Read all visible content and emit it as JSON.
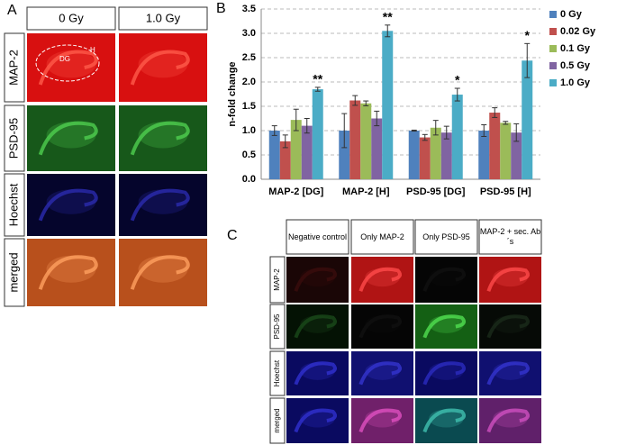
{
  "panel_labels": [
    "A",
    "B",
    "C"
  ],
  "panel_a": {
    "columns": [
      "0 Gy",
      "1.0 Gy"
    ],
    "rows": [
      "MAP-2",
      "PSD-95",
      "Hoechst",
      "merged"
    ],
    "image_labels": [
      "DG",
      "H"
    ]
  },
  "chart_data": {
    "type": "bar",
    "ylabel": "n-fold change",
    "categories": [
      "MAP-2 [DG]",
      "MAP-2 [H]",
      "PSD-95 [DG]",
      "PSD-95 [H]"
    ],
    "series": [
      {
        "name": "0 Gy",
        "color": "#4f81bd",
        "values": [
          1.0,
          1.0,
          1.0,
          1.0
        ],
        "errors": [
          0.1,
          0.35,
          0.01,
          0.12
        ]
      },
      {
        "name": "0.02 Gy",
        "color": "#c0504d",
        "values": [
          0.78,
          1.62,
          0.86,
          1.37
        ],
        "errors": [
          0.13,
          0.1,
          0.06,
          0.1
        ]
      },
      {
        "name": "0.1 Gy",
        "color": "#9bbb59",
        "values": [
          1.22,
          1.56,
          1.06,
          1.16
        ],
        "errors": [
          0.22,
          0.05,
          0.15,
          0.03
        ]
      },
      {
        "name": "0.5 Gy",
        "color": "#8064a2",
        "values": [
          1.1,
          1.25,
          0.96,
          0.96
        ],
        "errors": [
          0.15,
          0.15,
          0.13,
          0.18
        ]
      },
      {
        "name": "1.0 Gy",
        "color": "#4bacc6",
        "values": [
          1.85,
          3.05,
          1.74,
          2.44
        ],
        "errors": [
          0.04,
          0.12,
          0.13,
          0.35
        ]
      }
    ],
    "significance": [
      "**",
      "**",
      "*",
      "*"
    ],
    "ylim": [
      0,
      3.5
    ],
    "yticks": [
      {
        "value": 0,
        "label": "0.0"
      },
      {
        "value": 0.5,
        "label": "0.5"
      },
      {
        "value": 1,
        "label": "1.0"
      },
      {
        "value": 1.5,
        "label": "1.5"
      },
      {
        "value": 2,
        "label": "2.0"
      },
      {
        "value": 2.5,
        "label": "2.5"
      },
      {
        "value": 3,
        "label": "3.0"
      },
      {
        "value": 3.5,
        "label": "3.5"
      }
    ],
    "grid": true,
    "legend": "right"
  },
  "panel_c": {
    "columns": [
      "Negative control",
      "Only MAP-2",
      "Only PSD-95",
      "MAP-2 + sec. Ab´s"
    ],
    "rows": [
      "MAP-2",
      "PSD-95",
      "Hoechst",
      "merged"
    ]
  }
}
